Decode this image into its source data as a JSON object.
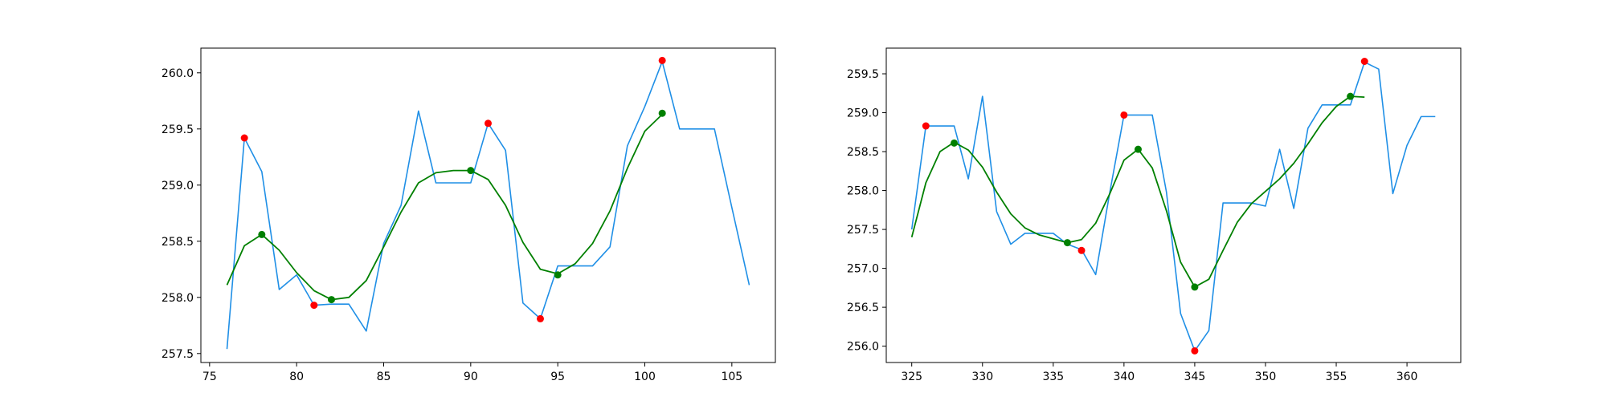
{
  "chart_data": [
    {
      "type": "line",
      "title": "",
      "xlabel": "",
      "ylabel": "",
      "xlim": [
        74.5,
        107.5
      ],
      "ylim": [
        257.42,
        260.22
      ],
      "xticks": [
        75,
        80,
        85,
        90,
        95,
        100,
        105
      ],
      "yticks": [
        257.5,
        258.0,
        258.5,
        259.0,
        259.5,
        260.0
      ],
      "grid": false,
      "colors": {
        "raw": "#1f8fe6",
        "smooth": "#008000",
        "red": "#ff0000",
        "green": "#008000"
      },
      "series": [
        {
          "role": "raw",
          "x": [
            76,
            77,
            78,
            79,
            80,
            81,
            82,
            83,
            84,
            85,
            86,
            87,
            88,
            89,
            90,
            91,
            92,
            93,
            94,
            95,
            96,
            97,
            98,
            99,
            100,
            101,
            102,
            103,
            104,
            105,
            106
          ],
          "y": [
            257.54,
            259.42,
            259.12,
            258.07,
            258.2,
            257.93,
            257.94,
            257.94,
            257.7,
            258.48,
            258.82,
            259.66,
            259.02,
            259.02,
            259.02,
            259.55,
            259.31,
            257.95,
            257.81,
            258.28,
            258.28,
            258.28,
            258.45,
            259.35,
            259.7,
            260.1,
            259.5,
            259.5,
            259.5,
            258.8,
            258.11
          ]
        },
        {
          "role": "smooth",
          "x": [
            76,
            77,
            78,
            79,
            80,
            81,
            82,
            83,
            84,
            85,
            86,
            87,
            88,
            89,
            90,
            91,
            92,
            93,
            94,
            95,
            96,
            97,
            98,
            99,
            100,
            101
          ],
          "y": [
            258.11,
            258.46,
            258.56,
            258.42,
            258.22,
            258.06,
            257.98,
            258.0,
            258.15,
            258.45,
            258.76,
            259.02,
            259.11,
            259.13,
            259.13,
            259.05,
            258.82,
            258.49,
            258.25,
            258.21,
            258.3,
            258.48,
            258.77,
            259.15,
            259.48,
            259.63
          ]
        },
        {
          "role": "red-points",
          "x": [
            77,
            81,
            91,
            94,
            101
          ],
          "y": [
            259.42,
            257.93,
            259.55,
            257.81,
            260.11
          ]
        },
        {
          "role": "green-points",
          "x": [
            78,
            82,
            90,
            95,
            101
          ],
          "y": [
            258.56,
            257.98,
            259.13,
            258.2,
            259.64
          ]
        }
      ]
    },
    {
      "type": "line",
      "title": "",
      "xlabel": "",
      "ylabel": "",
      "xlim": [
        323.2,
        363.8
      ],
      "ylim": [
        255.79,
        259.83
      ],
      "xticks": [
        325,
        330,
        335,
        340,
        345,
        350,
        355,
        360
      ],
      "yticks": [
        256.0,
        256.5,
        257.0,
        257.5,
        258.0,
        258.5,
        259.0,
        259.5
      ],
      "grid": false,
      "colors": {
        "raw": "#1f8fe6",
        "smooth": "#008000",
        "red": "#ff0000",
        "green": "#008000"
      },
      "series": [
        {
          "role": "raw",
          "x": [
            325,
            326,
            327,
            328,
            329,
            330,
            331,
            332,
            333,
            334,
            335,
            336,
            337,
            338,
            339,
            340,
            341,
            342,
            343,
            344,
            345,
            346,
            347,
            348,
            349,
            350,
            351,
            352,
            353,
            354,
            355,
            356,
            357,
            358,
            359,
            360,
            361,
            362
          ],
          "y": [
            257.5,
            258.83,
            258.83,
            258.83,
            258.15,
            259.21,
            257.73,
            257.31,
            257.45,
            257.45,
            257.45,
            257.31,
            257.24,
            256.92,
            257.98,
            258.97,
            258.97,
            258.97,
            257.98,
            256.42,
            255.94,
            256.2,
            257.84,
            257.84,
            257.84,
            257.8,
            258.53,
            257.77,
            258.8,
            259.1,
            259.1,
            259.1,
            259.65,
            259.56,
            257.96,
            258.58,
            258.95,
            258.95
          ]
        },
        {
          "role": "smooth",
          "x": [
            325,
            326,
            327,
            328,
            329,
            330,
            331,
            332,
            333,
            334,
            335,
            336,
            337,
            338,
            339,
            340,
            341,
            342,
            343,
            344,
            345,
            346,
            347,
            348,
            349,
            350,
            351,
            352,
            353,
            354,
            355,
            356,
            357
          ],
          "y": [
            257.4,
            258.1,
            258.5,
            258.62,
            258.52,
            258.3,
            257.98,
            257.7,
            257.52,
            257.43,
            257.38,
            257.33,
            257.37,
            257.58,
            257.96,
            258.39,
            258.53,
            258.29,
            257.74,
            257.08,
            256.76,
            256.86,
            257.23,
            257.59,
            257.83,
            257.99,
            258.15,
            258.35,
            258.6,
            258.87,
            259.08,
            259.21,
            259.2
          ]
        },
        {
          "role": "red-points",
          "x": [
            326,
            337,
            340,
            345,
            357
          ],
          "y": [
            258.83,
            257.23,
            258.97,
            255.94,
            259.66
          ]
        },
        {
          "role": "green-points",
          "x": [
            328,
            336,
            341,
            345,
            356
          ],
          "y": [
            258.61,
            257.33,
            258.53,
            256.76,
            259.21
          ]
        }
      ]
    }
  ]
}
